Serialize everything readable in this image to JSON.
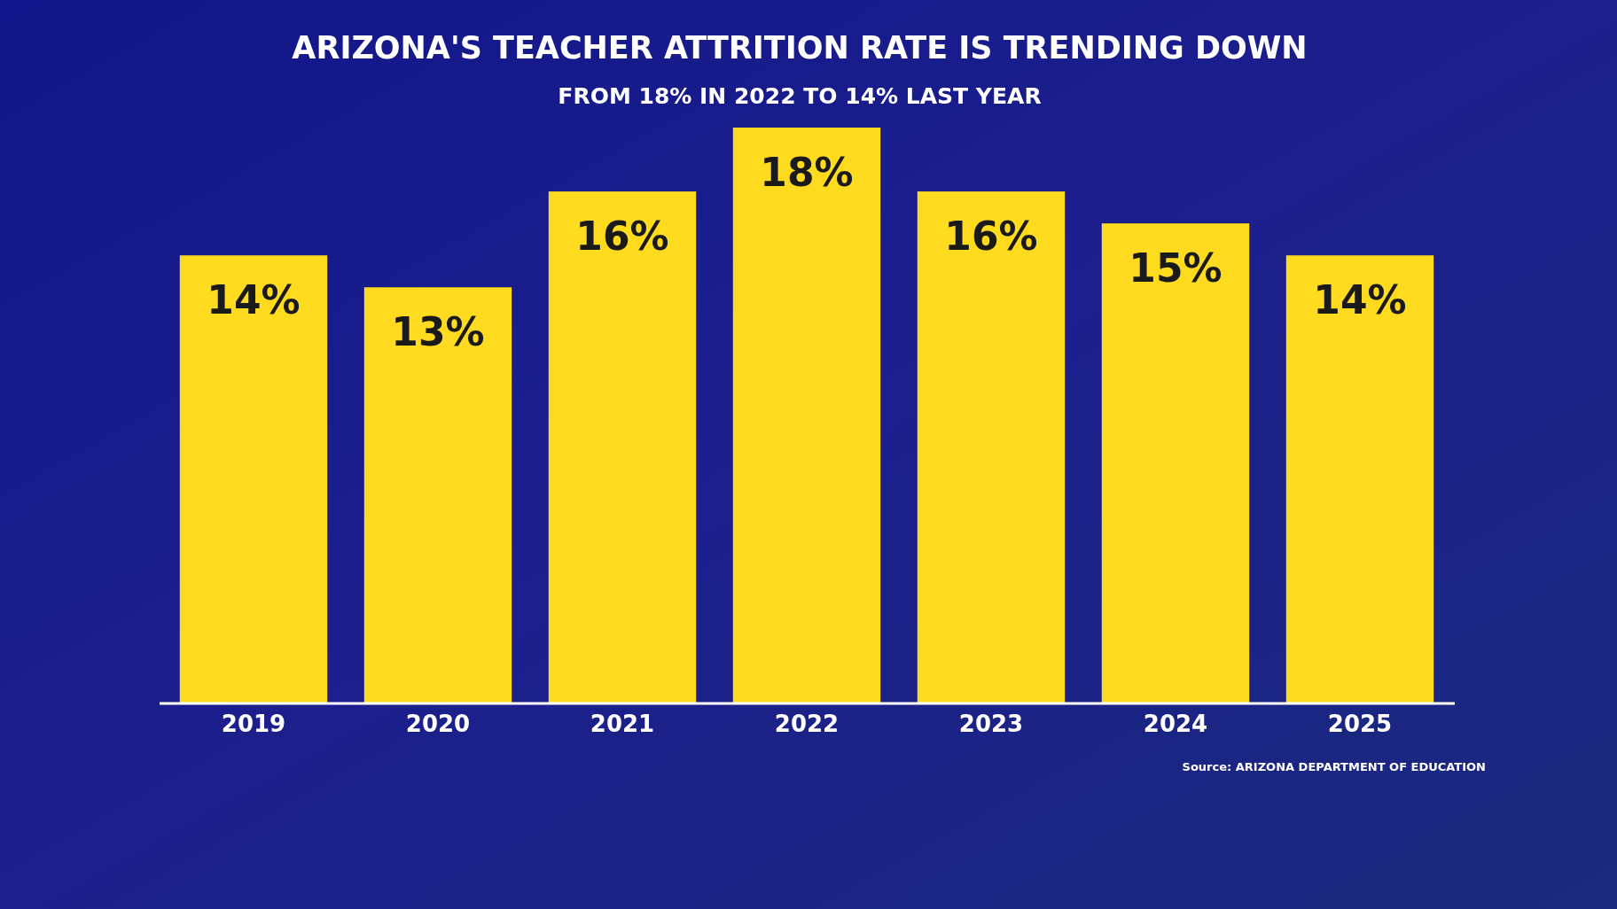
{
  "chart_data": {
    "type": "bar",
    "title": "ARIZONA'S TEACHER ATTRITION RATE IS TRENDING DOWN",
    "subtitle": "FROM 18% IN 2022 TO 14% LAST YEAR",
    "categories": [
      "2019",
      "2020",
      "2021",
      "2022",
      "2023",
      "2024",
      "2025"
    ],
    "values": [
      14,
      13,
      16,
      18,
      16,
      15,
      14
    ],
    "value_labels": [
      "14%",
      "13%",
      "16%",
      "18%",
      "16%",
      "15%",
      "14%"
    ],
    "color": "#ffdb1f",
    "annotations": [
      "Source: ARIZONA DEPARTMENT OF EDUCATION"
    ]
  }
}
